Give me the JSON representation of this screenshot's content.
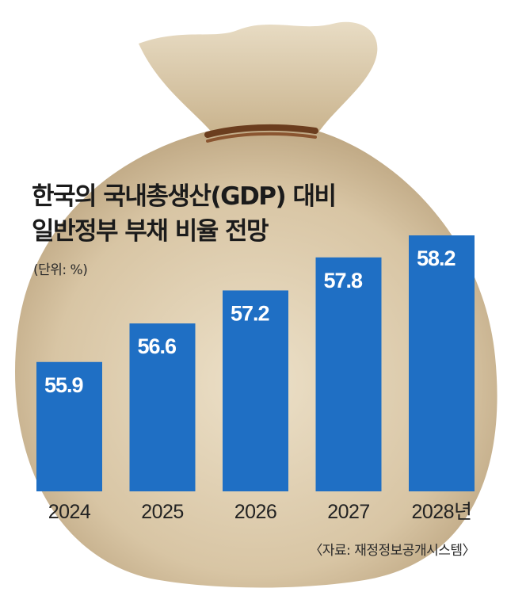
{
  "title_line1": "한국의 국내총생산(GDP) 대비",
  "title_line2": "일반정부 부채 비율 전망",
  "unit": "(단위: %)",
  "source": "〈자료: 재정정보공개시스템〉",
  "colors": {
    "bar": "#1f6fc4",
    "bag": "#d9c7a8",
    "rope": "#6b3d1e"
  },
  "chart_data": {
    "type": "bar",
    "title": "한국의 국내총생산(GDP) 대비 일반정부 부채 비율 전망",
    "unit_label": "(단위: %)",
    "categories": [
      "2024",
      "2025",
      "2026",
      "2027",
      "2028년"
    ],
    "values": [
      55.9,
      56.6,
      57.2,
      57.8,
      58.2
    ],
    "value_labels": [
      "55.9",
      "56.6",
      "57.2",
      "57.8",
      "58.2"
    ],
    "xlabel": "",
    "ylabel": "",
    "grid": false,
    "legend": "none"
  }
}
